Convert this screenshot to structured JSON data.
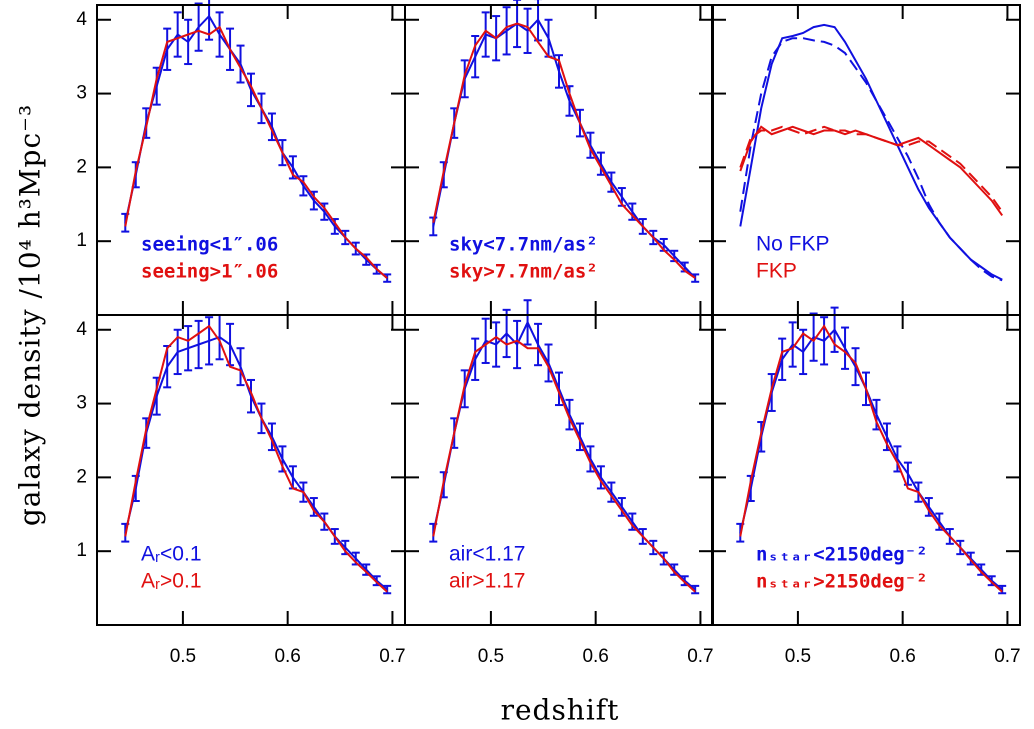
{
  "xlabel": "redshift",
  "ylabel": "galaxy density /10⁴ h³Mpc⁻³",
  "chart_data": [
    {
      "type": "line",
      "legend_style": "bold",
      "x": [
        0.445,
        0.455,
        0.465,
        0.475,
        0.485,
        0.495,
        0.505,
        0.515,
        0.525,
        0.535,
        0.545,
        0.555,
        0.565,
        0.575,
        0.585,
        0.595,
        0.605,
        0.615,
        0.625,
        0.635,
        0.645,
        0.655,
        0.665,
        0.675,
        0.685,
        0.695
      ],
      "xlim": [
        0.418,
        0.712
      ],
      "ylim": [
        0,
        4.2
      ],
      "xticks": [
        0.5,
        0.6,
        0.7
      ],
      "yticks": [
        1,
        2,
        3,
        4
      ],
      "series": [
        {
          "name": "seeing<1″.06",
          "color": "#1010e0",
          "values": [
            1.25,
            1.9,
            2.6,
            3.1,
            3.6,
            3.8,
            3.7,
            3.9,
            4.05,
            3.8,
            3.6,
            3.4,
            3.05,
            2.8,
            2.55,
            2.2,
            2.0,
            1.75,
            1.55,
            1.4,
            1.2,
            1.05,
            0.9,
            0.75,
            0.62,
            0.5
          ],
          "errors": [
            0.12,
            0.17,
            0.2,
            0.25,
            0.28,
            0.3,
            0.3,
            0.32,
            0.32,
            0.3,
            0.28,
            0.25,
            0.22,
            0.2,
            0.18,
            0.17,
            0.15,
            0.13,
            0.12,
            0.11,
            0.1,
            0.09,
            0.08,
            0.07,
            0.06,
            0.05
          ]
        },
        {
          "name": "seeing>1″.06",
          "color": "#e01010",
          "values": [
            1.2,
            1.95,
            2.55,
            3.2,
            3.7,
            3.75,
            3.8,
            3.85,
            3.8,
            3.9,
            3.6,
            3.35,
            3.1,
            2.8,
            2.5,
            2.2,
            1.9,
            1.8,
            1.6,
            1.45,
            1.25,
            1.05,
            0.9,
            0.78,
            0.62,
            0.5
          ]
        }
      ]
    },
    {
      "type": "line",
      "legend_style": "bold",
      "x": [
        0.445,
        0.455,
        0.465,
        0.475,
        0.485,
        0.495,
        0.505,
        0.515,
        0.525,
        0.535,
        0.545,
        0.555,
        0.565,
        0.575,
        0.585,
        0.595,
        0.605,
        0.615,
        0.625,
        0.635,
        0.645,
        0.655,
        0.665,
        0.675,
        0.685,
        0.695
      ],
      "xlim": [
        0.418,
        0.712
      ],
      "ylim": [
        0,
        4.2
      ],
      "xticks": [
        0.5,
        0.6,
        0.7
      ],
      "yticks": [
        1,
        2,
        3,
        4
      ],
      "series": [
        {
          "name": "sky<7.7nm/as²",
          "color": "#1010e0",
          "values": [
            1.2,
            1.9,
            2.6,
            3.2,
            3.5,
            3.8,
            3.75,
            3.85,
            3.95,
            3.85,
            4.0,
            3.75,
            3.3,
            2.9,
            2.6,
            2.3,
            2.05,
            1.8,
            1.6,
            1.4,
            1.2,
            1.05,
            0.95,
            0.8,
            0.65,
            0.5
          ],
          "errors": [
            0.12,
            0.17,
            0.2,
            0.25,
            0.28,
            0.3,
            0.3,
            0.32,
            0.32,
            0.3,
            0.28,
            0.25,
            0.22,
            0.2,
            0.18,
            0.17,
            0.15,
            0.13,
            0.12,
            0.11,
            0.1,
            0.09,
            0.08,
            0.07,
            0.06,
            0.05
          ]
        },
        {
          "name": "sky>7.7nm/as²",
          "color": "#e01010",
          "values": [
            1.25,
            1.95,
            2.6,
            3.25,
            3.65,
            3.85,
            3.75,
            3.9,
            3.95,
            3.9,
            3.7,
            3.5,
            3.45,
            3.0,
            2.6,
            2.25,
            2.0,
            1.75,
            1.5,
            1.35,
            1.2,
            1.05,
            0.88,
            0.75,
            0.6,
            0.5
          ]
        }
      ]
    },
    {
      "type": "line",
      "x": [
        0.445,
        0.455,
        0.465,
        0.475,
        0.485,
        0.495,
        0.505,
        0.515,
        0.525,
        0.535,
        0.545,
        0.555,
        0.565,
        0.575,
        0.585,
        0.595,
        0.605,
        0.615,
        0.625,
        0.635,
        0.645,
        0.655,
        0.665,
        0.675,
        0.685,
        0.695
      ],
      "xlim": [
        0.418,
        0.712
      ],
      "ylim": [
        0,
        4.2
      ],
      "xticks": [
        0.5,
        0.6,
        0.7
      ],
      "yticks": [
        1,
        2,
        3,
        4
      ],
      "series": [
        {
          "name": "No FKP",
          "color": "#1010e0",
          "values": [
            1.2,
            2.0,
            2.8,
            3.4,
            3.75,
            3.78,
            3.82,
            3.9,
            3.93,
            3.9,
            3.7,
            3.45,
            3.2,
            2.9,
            2.6,
            2.3,
            2.0,
            1.7,
            1.45,
            1.25,
            1.05,
            0.9,
            0.75,
            0.65,
            0.55,
            0.48
          ]
        },
        {
          "color": "#1010e0",
          "dash": true,
          "values": [
            1.4,
            2.3,
            3.0,
            3.5,
            3.7,
            3.75,
            3.75,
            3.72,
            3.7,
            3.65,
            3.55,
            3.35,
            3.15,
            2.9,
            2.65,
            2.4,
            2.15,
            1.85,
            1.5,
            1.25,
            1.05,
            0.9,
            0.75,
            0.62,
            0.52,
            0.47
          ]
        },
        {
          "name": "FKP",
          "color": "#e01010",
          "values": [
            1.95,
            2.35,
            2.55,
            2.45,
            2.5,
            2.55,
            2.5,
            2.45,
            2.5,
            2.5,
            2.45,
            2.5,
            2.45,
            2.4,
            2.35,
            2.3,
            2.35,
            2.4,
            2.3,
            2.2,
            2.1,
            2.0,
            1.85,
            1.7,
            1.55,
            1.35
          ]
        },
        {
          "color": "#e01010",
          "dash": true,
          "values": [
            2.0,
            2.4,
            2.5,
            2.5,
            2.55,
            2.5,
            2.45,
            2.5,
            2.55,
            2.5,
            2.5,
            2.45,
            2.45,
            2.4,
            2.35,
            2.3,
            2.3,
            2.35,
            2.35,
            2.25,
            2.15,
            2.05,
            1.9,
            1.75,
            1.6,
            1.4
          ]
        }
      ]
    },
    {
      "type": "line",
      "x": [
        0.445,
        0.455,
        0.465,
        0.475,
        0.485,
        0.495,
        0.505,
        0.515,
        0.525,
        0.535,
        0.545,
        0.555,
        0.565,
        0.575,
        0.585,
        0.595,
        0.605,
        0.615,
        0.625,
        0.635,
        0.645,
        0.655,
        0.665,
        0.675,
        0.685,
        0.695
      ],
      "xlim": [
        0.418,
        0.712
      ],
      "ylim": [
        0,
        4.2
      ],
      "xticks": [
        0.5,
        0.6,
        0.7
      ],
      "yticks": [
        1,
        2,
        3,
        4
      ],
      "series": [
        {
          "name": "Aᵣ<0.1",
          "color": "#1010e0",
          "values": [
            1.25,
            1.85,
            2.6,
            3.1,
            3.5,
            3.7,
            3.75,
            3.8,
            3.85,
            3.9,
            3.8,
            3.5,
            3.1,
            2.8,
            2.55,
            2.25,
            2.0,
            1.8,
            1.6,
            1.4,
            1.2,
            1.05,
            0.9,
            0.75,
            0.6,
            0.48
          ],
          "errors": [
            0.12,
            0.17,
            0.2,
            0.25,
            0.28,
            0.3,
            0.3,
            0.32,
            0.32,
            0.3,
            0.28,
            0.25,
            0.22,
            0.2,
            0.18,
            0.17,
            0.15,
            0.13,
            0.12,
            0.11,
            0.1,
            0.09,
            0.08,
            0.07,
            0.06,
            0.05
          ]
        },
        {
          "name": "Aᵣ>0.1",
          "color": "#e01010",
          "values": [
            1.2,
            1.95,
            2.65,
            3.2,
            3.75,
            3.9,
            3.85,
            3.95,
            4.05,
            3.85,
            3.5,
            3.45,
            3.15,
            2.8,
            2.5,
            2.15,
            1.85,
            1.8,
            1.55,
            1.4,
            1.2,
            1.0,
            0.85,
            0.72,
            0.58,
            0.45
          ]
        }
      ]
    },
    {
      "type": "line",
      "x": [
        0.445,
        0.455,
        0.465,
        0.475,
        0.485,
        0.495,
        0.505,
        0.515,
        0.525,
        0.535,
        0.545,
        0.555,
        0.565,
        0.575,
        0.585,
        0.595,
        0.605,
        0.615,
        0.625,
        0.635,
        0.645,
        0.655,
        0.665,
        0.675,
        0.685,
        0.695
      ],
      "xlim": [
        0.418,
        0.712
      ],
      "ylim": [
        0,
        4.2
      ],
      "xticks": [
        0.5,
        0.6,
        0.7
      ],
      "yticks": [
        1,
        2,
        3,
        4
      ],
      "series": [
        {
          "name": "air<1.17",
          "color": "#1010e0",
          "values": [
            1.25,
            1.9,
            2.6,
            3.2,
            3.6,
            3.85,
            3.8,
            3.95,
            3.8,
            4.1,
            3.8,
            3.55,
            3.2,
            2.85,
            2.55,
            2.25,
            2.0,
            1.8,
            1.6,
            1.4,
            1.2,
            1.05,
            0.9,
            0.75,
            0.6,
            0.48
          ],
          "errors": [
            0.12,
            0.17,
            0.2,
            0.25,
            0.28,
            0.3,
            0.3,
            0.32,
            0.32,
            0.3,
            0.28,
            0.25,
            0.22,
            0.2,
            0.18,
            0.17,
            0.15,
            0.13,
            0.12,
            0.11,
            0.1,
            0.09,
            0.08,
            0.07,
            0.06,
            0.05
          ]
        },
        {
          "name": "air>1.17",
          "color": "#e01010",
          "values": [
            1.2,
            1.95,
            2.6,
            3.25,
            3.7,
            3.8,
            3.9,
            3.8,
            3.85,
            3.75,
            3.75,
            3.5,
            3.15,
            2.8,
            2.5,
            2.2,
            1.95,
            1.75,
            1.55,
            1.35,
            1.2,
            1.05,
            0.9,
            0.72,
            0.58,
            0.45
          ]
        }
      ]
    },
    {
      "type": "line",
      "legend_style": "bold",
      "x": [
        0.445,
        0.455,
        0.465,
        0.475,
        0.485,
        0.495,
        0.505,
        0.515,
        0.525,
        0.535,
        0.545,
        0.555,
        0.565,
        0.575,
        0.585,
        0.595,
        0.605,
        0.615,
        0.625,
        0.635,
        0.645,
        0.655,
        0.665,
        0.675,
        0.685,
        0.695
      ],
      "xlim": [
        0.418,
        0.712
      ],
      "ylim": [
        0,
        4.2
      ],
      "xticks": [
        0.5,
        0.6,
        0.7
      ],
      "yticks": [
        1,
        2,
        3,
        4
      ],
      "series": [
        {
          "name": "nₛₜₐᵣ<2150deg⁻²",
          "color": "#1010e0",
          "values": [
            1.25,
            1.85,
            2.55,
            3.15,
            3.6,
            3.8,
            3.7,
            3.9,
            3.85,
            4.0,
            3.75,
            3.5,
            3.2,
            2.85,
            2.55,
            2.25,
            2.05,
            1.8,
            1.6,
            1.4,
            1.2,
            1.05,
            0.9,
            0.75,
            0.6,
            0.48
          ],
          "errors": [
            0.12,
            0.17,
            0.2,
            0.25,
            0.28,
            0.3,
            0.3,
            0.32,
            0.32,
            0.3,
            0.28,
            0.25,
            0.22,
            0.2,
            0.18,
            0.17,
            0.15,
            0.13,
            0.12,
            0.11,
            0.1,
            0.09,
            0.08,
            0.07,
            0.06,
            0.05
          ]
        },
        {
          "name": "nₛₜₐᵣ>2150deg⁻²",
          "color": "#e01010",
          "values": [
            1.2,
            1.95,
            2.6,
            3.2,
            3.7,
            3.75,
            3.95,
            3.85,
            4.05,
            3.8,
            3.7,
            3.55,
            3.2,
            2.75,
            2.45,
            2.2,
            1.85,
            1.8,
            1.55,
            1.35,
            1.2,
            1.05,
            0.88,
            0.72,
            0.58,
            0.45
          ]
        }
      ]
    }
  ]
}
